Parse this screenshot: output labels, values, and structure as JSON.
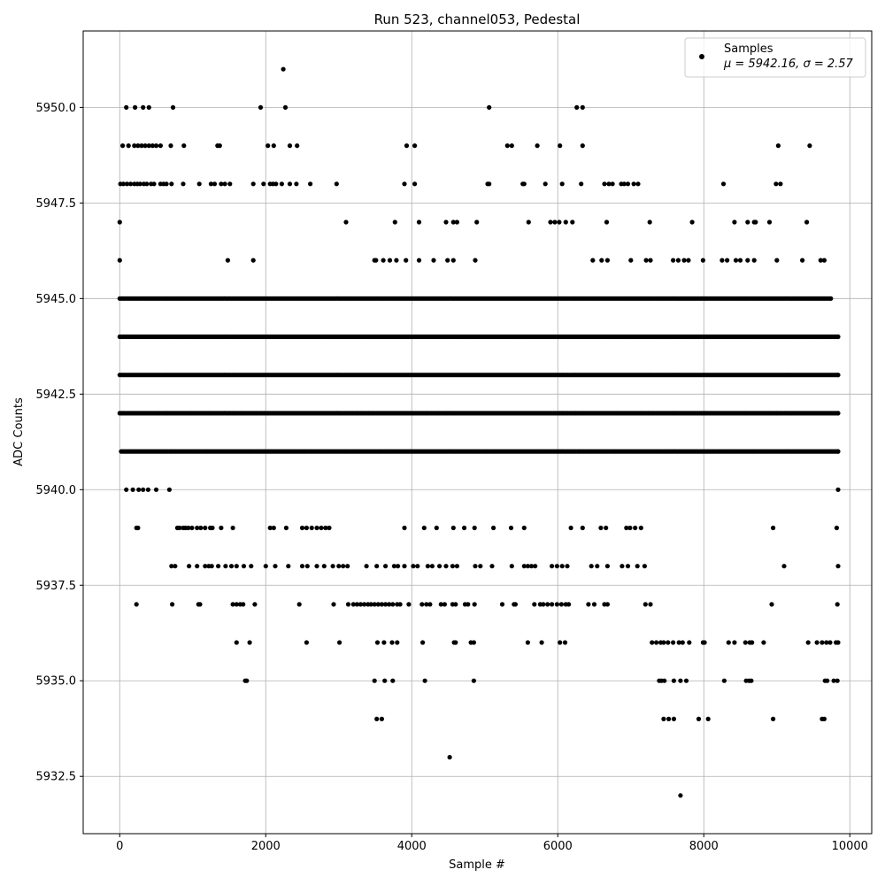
{
  "chart_data": {
    "type": "scatter",
    "title": "Run 523, channel053, Pedestal",
    "xlabel": "Sample #",
    "ylabel": "ADC Counts",
    "xlim": [
      -500,
      10300
    ],
    "ylim": [
      5931,
      5952
    ],
    "x_ticks": [
      0,
      2000,
      4000,
      6000,
      8000,
      10000
    ],
    "x_tick_labels": [
      "0",
      "2000",
      "4000",
      "6000",
      "8000",
      "10000"
    ],
    "y_ticks": [
      5932.5,
      5935.0,
      5937.5,
      5940.0,
      5942.5,
      5945.0,
      5947.5,
      5950.0
    ],
    "y_tick_labels": [
      "5932.5",
      "5935.0",
      "5937.5",
      "5940.0",
      "5942.5",
      "5945.0",
      "5947.5",
      "5950.0"
    ],
    "grid": true,
    "legend_position": "top-right",
    "marker_color": "#000000",
    "series": [
      {
        "name": "Samples",
        "stat_line": "μ = 5942.16, σ = 2.57",
        "bands": [
          {
            "y": 5951,
            "x": [
              2240
            ]
          },
          {
            "y": 5950,
            "x": [
              90,
              210,
              320,
              400,
              730,
              1930,
              2270,
              5060,
              6260,
              6340
            ]
          },
          {
            "y": 5949,
            "x": [
              40,
              120,
              200,
              250,
              300,
              350,
              400,
              450,
              500,
              560,
              700,
              880,
              1340,
              1370,
              2030,
              2110,
              2330,
              2430,
              3930,
              4040,
              5310,
              5370,
              5720,
              6030,
              6340,
              9020,
              9450
            ]
          },
          {
            "y": 5948,
            "x": [
              10,
              50,
              100,
              150,
              200,
              240,
              280,
              330,
              370,
              430,
              470,
              560,
              600,
              640,
              710,
              870,
              1090,
              1250,
              1300,
              1390,
              1440,
              1510,
              1830,
              1970,
              2060,
              2100,
              2140,
              2220,
              2330,
              2420,
              2610,
              2970,
              3900,
              4040,
              5040,
              5060,
              5520,
              5540,
              5830,
              6060,
              6320,
              6640,
              6700,
              6750,
              6870,
              6910,
              6960,
              7040,
              7100,
              8270,
              8990,
              9050
            ]
          },
          {
            "y": 5947,
            "x": [
              0,
              3100,
              3770,
              4100,
              4470,
              4570,
              4620,
              4890,
              5600,
              5900,
              5960,
              6020,
              6110,
              6200,
              6670,
              7260,
              7840,
              8420,
              8600,
              8690,
              8710,
              8900,
              9410
            ]
          },
          {
            "y": 5946,
            "x": [
              0,
              1480,
              1830,
              3490,
              3510,
              3610,
              3700,
              3790,
              3920,
              4100,
              4300,
              4490,
              4570,
              4870,
              6480,
              6600,
              6680,
              7000,
              7210,
              7270,
              7580,
              7650,
              7730,
              7790,
              7990,
              8250,
              8320,
              8440,
              8500,
              8600,
              8690,
              9000,
              9350,
              9600,
              9650
            ]
          },
          {
            "y": 5945,
            "x": [
              0,
              9740
            ]
          },
          {
            "y": 5944,
            "x": [
              0,
              9840
            ]
          },
          {
            "y": 5943,
            "x": [
              0,
              9840
            ]
          },
          {
            "y": 5942,
            "x": [
              0,
              9840
            ]
          },
          {
            "y": 5941,
            "x": [
              20,
              9840
            ]
          },
          {
            "y": 5940,
            "x": [
              90,
              180,
              260,
              320,
              390,
              500,
              680,
              9840
            ]
          },
          {
            "y": 5939,
            "x": [
              230,
              250,
              790,
              820,
              870,
              900,
              940,
              990,
              1060,
              1110,
              1170,
              1240,
              1270,
              1390,
              1550,
              2060,
              2110,
              2280,
              2500,
              2560,
              2630,
              2700,
              2760,
              2820,
              2870,
              3900,
              4170,
              4340,
              4570,
              4720,
              4860,
              5120,
              5360,
              5540,
              6180,
              6340,
              6590,
              6660,
              6940,
              6990,
              7060,
              7140,
              8950,
              9820
            ]
          },
          {
            "y": 5938,
            "x": [
              710,
              760,
              950,
              1060,
              1170,
              1220,
              1260,
              1350,
              1450,
              1530,
              1600,
              1700,
              1800,
              2000,
              2130,
              2310,
              2500,
              2570,
              2700,
              2800,
              2920,
              3000,
              3060,
              3120,
              3380,
              3520,
              3640,
              3760,
              3810,
              3900,
              4020,
              4080,
              4220,
              4280,
              4380,
              4470,
              4560,
              4620,
              4870,
              4940,
              5100,
              5370,
              5540,
              5590,
              5640,
              5690,
              5920,
              5990,
              6060,
              6130,
              6460,
              6540,
              6680,
              6880,
              6960,
              7090,
              7190,
              9100,
              9840
            ]
          },
          {
            "y": 5937,
            "x": [
              230,
              720,
              1080,
              1100,
              1550,
              1600,
              1650,
              1690,
              1850,
              2460,
              2930,
              3130,
              3200,
              3250,
              3300,
              3350,
              3400,
              3440,
              3490,
              3540,
              3590,
              3640,
              3690,
              3740,
              3800,
              3840,
              3960,
              4140,
              4200,
              4250,
              4400,
              4450,
              4560,
              4600,
              4730,
              4770,
              4860,
              5240,
              5400,
              5420,
              5680,
              5760,
              5800,
              5860,
              5920,
              5990,
              6050,
              6110,
              6150,
              6420,
              6500,
              6640,
              6680,
              7200,
              7270,
              8930,
              9830
            ]
          },
          {
            "y": 5936,
            "x": [
              1600,
              1780,
              2560,
              3010,
              3530,
              3620,
              3730,
              3800,
              4150,
              4580,
              4600,
              4810,
              4850,
              5590,
              5780,
              6030,
              6100,
              7290,
              7350,
              7410,
              7450,
              7510,
              7580,
              7660,
              7710,
              7800,
              7990,
              8010,
              8340,
              8420,
              8570,
              8630,
              8660,
              8820,
              9430,
              9550,
              9620,
              9680,
              9730,
              9810,
              9840
            ]
          },
          {
            "y": 5935,
            "x": [
              1720,
              1740,
              3490,
              3630,
              3740,
              4180,
              4850,
              7390,
              7420,
              7460,
              7590,
              7680,
              7760,
              8280,
              8580,
              8620,
              8650,
              9660,
              9690,
              9780,
              9830
            ]
          },
          {
            "y": 5934,
            "x": [
              3520,
              3590,
              7450,
              7520,
              7590,
              7930,
              8060,
              8950,
              9620,
              9650
            ]
          },
          {
            "y": 5933,
            "x": [
              4520
            ]
          },
          {
            "y": 5932,
            "x": [
              7680
            ]
          }
        ]
      }
    ]
  }
}
